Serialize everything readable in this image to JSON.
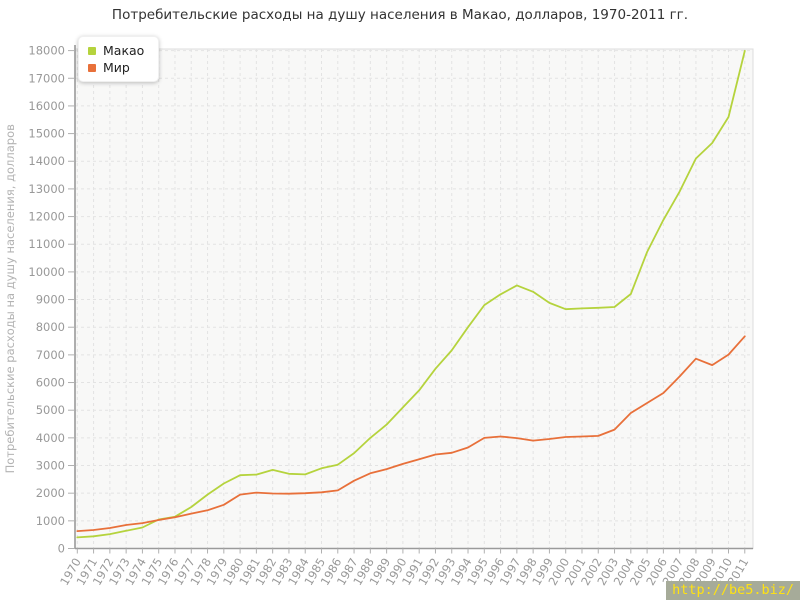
{
  "title": "Потребительские расходы на душу населения в Макао, долларов, 1970-2011 гг.",
  "watermark": {
    "text": "http://be5.biz/",
    "bg": "#a6ab99",
    "color": "#ffe212"
  },
  "colors": {
    "plot_bg": "#f8f8f7",
    "plot_border": "#dddddd",
    "grid": "#e3e3e3",
    "axis": "#9a9a9a",
    "tick": "#b0b0b0",
    "tick_label": "#999999",
    "axis_title": "#b3b3b3",
    "title_text": "#333333"
  },
  "chart_data": {
    "type": "line",
    "title": "Потребительские расходы на душу населения в Макао, долларов, 1970-2011 гг.",
    "xlabel": "",
    "ylabel": "Потребительские расходы на душу населения, долларов",
    "ylim": [
      0,
      18000
    ],
    "ytick_step": 1000,
    "grid": true,
    "grid_style": "dashed",
    "legend_position": "top-left",
    "x": [
      1970,
      1971,
      1972,
      1973,
      1974,
      1975,
      1976,
      1977,
      1978,
      1979,
      1980,
      1981,
      1982,
      1983,
      1984,
      1985,
      1986,
      1987,
      1988,
      1989,
      1990,
      1991,
      1992,
      1993,
      1994,
      1995,
      1996,
      1997,
      1998,
      1999,
      2000,
      2001,
      2002,
      2003,
      2004,
      2005,
      2006,
      2007,
      2008,
      2009,
      2010,
      2011
    ],
    "series": [
      {
        "name": "Макао",
        "slug": "macao",
        "color": "#b5d33d",
        "values": [
          400,
          440,
          520,
          640,
          760,
          1050,
          1150,
          1500,
          1950,
          2350,
          2650,
          2670,
          2840,
          2700,
          2680,
          2900,
          3030,
          3450,
          4000,
          4480,
          5100,
          5720,
          6500,
          7160,
          8000,
          8800,
          9190,
          9510,
          9280,
          8880,
          8650,
          8680,
          8700,
          8730,
          9200,
          10720,
          11880,
          12910,
          14100,
          14660,
          15600,
          17990
        ]
      },
      {
        "name": "Мир",
        "slug": "mir",
        "color": "#e8703a",
        "values": [
          630,
          670,
          740,
          850,
          920,
          1030,
          1130,
          1260,
          1380,
          1580,
          1950,
          2020,
          1990,
          1980,
          2000,
          2030,
          2100,
          2450,
          2720,
          2870,
          3060,
          3230,
          3400,
          3460,
          3650,
          4000,
          4050,
          3990,
          3900,
          3960,
          4030,
          4050,
          4070,
          4300,
          4900,
          5260,
          5620,
          6220,
          6860,
          6630,
          7010,
          7670
        ]
      }
    ]
  }
}
